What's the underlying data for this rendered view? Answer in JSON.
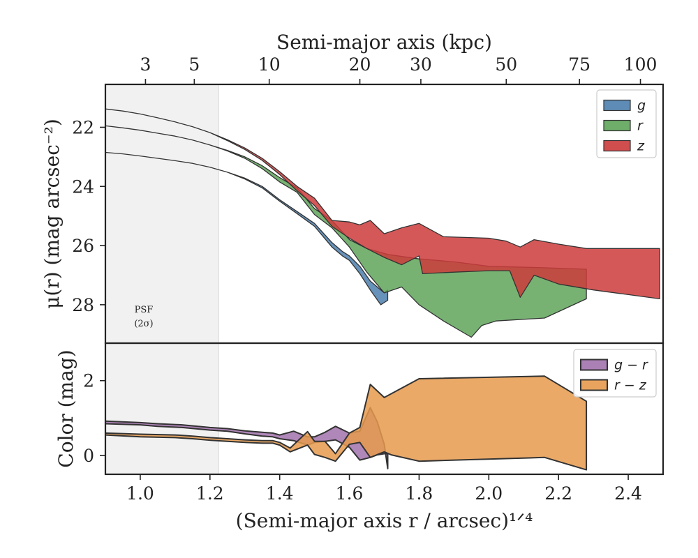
{
  "chart_data": [
    {
      "type": "area",
      "panel": "surface-brightness",
      "ylabel": "μ(r) (mag arcsec⁻²)",
      "top_xlabel": "Semi-major axis (kpc)",
      "top_ticks": [
        {
          "label": "3",
          "x": 1.015
        },
        {
          "label": "5",
          "x": 1.155
        },
        {
          "label": "10",
          "x": 1.37
        },
        {
          "label": "20",
          "x": 1.63
        },
        {
          "label": "30",
          "x": 1.805
        },
        {
          "label": "50",
          "x": 2.05
        },
        {
          "label": "75",
          "x": 2.26
        },
        {
          "label": "100",
          "x": 2.435
        }
      ],
      "xlim": [
        0.9,
        2.5
      ],
      "ylim": [
        29.3,
        20.55
      ],
      "yticks": [
        22,
        24,
        26,
        28
      ],
      "y_inverted": true,
      "psf_region": {
        "x_max": 1.225,
        "label_line1": "PSF",
        "label_line2": "(2σ)"
      },
      "legend": {
        "position": "top-right"
      },
      "series": [
        {
          "name": "g",
          "color": "#4c7fae",
          "upper": [
            [
              0.9,
              22.85
            ],
            [
              0.95,
              22.9
            ],
            [
              1.0,
              22.97
            ],
            [
              1.05,
              23.05
            ],
            [
              1.1,
              23.13
            ],
            [
              1.15,
              23.22
            ],
            [
              1.2,
              23.35
            ],
            [
              1.25,
              23.52
            ],
            [
              1.3,
              23.72
            ],
            [
              1.35,
              24.0
            ],
            [
              1.4,
              24.45
            ],
            [
              1.45,
              24.85
            ],
            [
              1.5,
              25.25
            ],
            [
              1.55,
              25.9
            ],
            [
              1.58,
              26.2
            ],
            [
              1.6,
              26.35
            ],
            [
              1.63,
              26.7
            ],
            [
              1.66,
              27.2
            ],
            [
              1.7,
              27.6
            ],
            [
              1.71,
              27.5
            ]
          ],
          "lower": [
            [
              0.9,
              22.85
            ],
            [
              0.95,
              22.9
            ],
            [
              1.0,
              22.97
            ],
            [
              1.05,
              23.05
            ],
            [
              1.1,
              23.13
            ],
            [
              1.15,
              23.22
            ],
            [
              1.2,
              23.35
            ],
            [
              1.25,
              23.52
            ],
            [
              1.3,
              23.75
            ],
            [
              1.35,
              24.05
            ],
            [
              1.4,
              24.5
            ],
            [
              1.45,
              24.92
            ],
            [
              1.5,
              25.35
            ],
            [
              1.55,
              26.05
            ],
            [
              1.58,
              26.35
            ],
            [
              1.6,
              26.5
            ],
            [
              1.63,
              26.95
            ],
            [
              1.66,
              27.5
            ],
            [
              1.69,
              28.0
            ],
            [
              1.71,
              27.85
            ]
          ]
        },
        {
          "name": "r",
          "color": "#5fa55a",
          "upper": [
            [
              0.9,
              21.95
            ],
            [
              0.95,
              22.02
            ],
            [
              1.0,
              22.1
            ],
            [
              1.05,
              22.2
            ],
            [
              1.1,
              22.3
            ],
            [
              1.15,
              22.43
            ],
            [
              1.2,
              22.6
            ],
            [
              1.25,
              22.78
            ],
            [
              1.3,
              23.0
            ],
            [
              1.35,
              23.3
            ],
            [
              1.4,
              23.7
            ],
            [
              1.45,
              24.05
            ],
            [
              1.5,
              24.75
            ],
            [
              1.55,
              25.15
            ],
            [
              1.6,
              25.8
            ],
            [
              1.65,
              26.1
            ],
            [
              1.71,
              26.3
            ],
            [
              1.8,
              26.45
            ],
            [
              1.9,
              26.55
            ],
            [
              2.0,
              26.7
            ],
            [
              2.16,
              26.75
            ],
            [
              2.28,
              26.8
            ]
          ],
          "lower": [
            [
              0.9,
              21.95
            ],
            [
              0.95,
              22.02
            ],
            [
              1.0,
              22.1
            ],
            [
              1.05,
              22.2
            ],
            [
              1.1,
              22.3
            ],
            [
              1.15,
              22.43
            ],
            [
              1.2,
              22.6
            ],
            [
              1.25,
              22.8
            ],
            [
              1.3,
              23.05
            ],
            [
              1.35,
              23.4
            ],
            [
              1.4,
              23.85
            ],
            [
              1.45,
              24.2
            ],
            [
              1.5,
              24.95
            ],
            [
              1.55,
              25.4
            ],
            [
              1.6,
              26.05
            ],
            [
              1.65,
              26.9
            ],
            [
              1.7,
              27.6
            ],
            [
              1.75,
              27.4
            ],
            [
              1.8,
              28.0
            ],
            [
              1.87,
              28.55
            ],
            [
              1.95,
              29.1
            ],
            [
              1.98,
              28.7
            ],
            [
              2.02,
              28.55
            ],
            [
              2.16,
              28.45
            ],
            [
              2.28,
              27.8
            ]
          ]
        },
        {
          "name": "z",
          "color": "#cc3b3b",
          "upper": [
            [
              0.9,
              21.38
            ],
            [
              0.95,
              21.45
            ],
            [
              1.0,
              21.55
            ],
            [
              1.05,
              21.68
            ],
            [
              1.1,
              21.82
            ],
            [
              1.15,
              21.98
            ],
            [
              1.2,
              22.18
            ],
            [
              1.25,
              22.42
            ],
            [
              1.3,
              22.7
            ],
            [
              1.35,
              23.05
            ],
            [
              1.4,
              23.5
            ],
            [
              1.45,
              24.0
            ],
            [
              1.5,
              24.4
            ],
            [
              1.55,
              25.15
            ],
            [
              1.6,
              25.2
            ],
            [
              1.63,
              25.3
            ],
            [
              1.66,
              25.15
            ],
            [
              1.7,
              25.6
            ],
            [
              1.75,
              25.4
            ],
            [
              1.8,
              25.25
            ],
            [
              1.87,
              25.7
            ],
            [
              2.0,
              25.75
            ],
            [
              2.05,
              25.85
            ],
            [
              2.09,
              26.05
            ],
            [
              2.13,
              25.8
            ],
            [
              2.2,
              25.95
            ],
            [
              2.28,
              26.1
            ],
            [
              2.49,
              26.1
            ]
          ],
          "lower": [
            [
              0.9,
              21.38
            ],
            [
              0.95,
              21.45
            ],
            [
              1.0,
              21.55
            ],
            [
              1.05,
              21.68
            ],
            [
              1.1,
              21.82
            ],
            [
              1.15,
              21.98
            ],
            [
              1.2,
              22.18
            ],
            [
              1.25,
              22.45
            ],
            [
              1.3,
              22.75
            ],
            [
              1.35,
              23.12
            ],
            [
              1.4,
              23.6
            ],
            [
              1.45,
              24.15
            ],
            [
              1.5,
              24.65
            ],
            [
              1.55,
              25.35
            ],
            [
              1.6,
              25.75
            ],
            [
              1.65,
              26.1
            ],
            [
              1.7,
              26.4
            ],
            [
              1.75,
              26.65
            ],
            [
              1.8,
              26.35
            ],
            [
              1.81,
              26.95
            ],
            [
              1.9,
              26.9
            ],
            [
              2.0,
              26.85
            ],
            [
              2.06,
              26.85
            ],
            [
              2.09,
              27.75
            ],
            [
              2.13,
              27.0
            ],
            [
              2.2,
              27.3
            ],
            [
              2.3,
              27.5
            ],
            [
              2.49,
              27.8
            ]
          ]
        }
      ]
    },
    {
      "type": "area",
      "panel": "color",
      "xlabel": "(Semi-major axis r / arcsec)¹ᐟ⁴",
      "ylabel": "Color (mag)",
      "xlim": [
        0.9,
        2.5
      ],
      "ylim": [
        -0.5,
        3.0
      ],
      "yticks": [
        0,
        2
      ],
      "xticks": [
        1.0,
        1.2,
        1.4,
        1.6,
        1.8,
        2.0,
        2.2,
        2.4
      ],
      "xtick_labels": [
        "1.0",
        "1.2",
        "1.4",
        "1.6",
        "1.8",
        "2.0",
        "2.2",
        "2.4"
      ],
      "legend": {
        "position": "top-right"
      },
      "series": [
        {
          "name": "g − r",
          "color": "#a272ad",
          "upper": [
            [
              0.9,
              0.92
            ],
            [
              1.0,
              0.88
            ],
            [
              1.05,
              0.85
            ],
            [
              1.12,
              0.82
            ],
            [
              1.2,
              0.75
            ],
            [
              1.25,
              0.72
            ],
            [
              1.3,
              0.66
            ],
            [
              1.35,
              0.62
            ],
            [
              1.38,
              0.6
            ],
            [
              1.4,
              0.55
            ],
            [
              1.44,
              0.65
            ],
            [
              1.48,
              0.5
            ],
            [
              1.5,
              0.5
            ],
            [
              1.53,
              0.62
            ],
            [
              1.56,
              0.78
            ],
            [
              1.6,
              0.6
            ],
            [
              1.63,
              0.65
            ],
            [
              1.66,
              1.28
            ],
            [
              1.68,
              0.9
            ],
            [
              1.7,
              0.3
            ],
            [
              1.71,
              -0.35
            ]
          ],
          "lower": [
            [
              0.9,
              0.85
            ],
            [
              1.0,
              0.82
            ],
            [
              1.05,
              0.78
            ],
            [
              1.12,
              0.75
            ],
            [
              1.2,
              0.68
            ],
            [
              1.25,
              0.65
            ],
            [
              1.3,
              0.58
            ],
            [
              1.35,
              0.52
            ],
            [
              1.38,
              0.5
            ],
            [
              1.4,
              0.45
            ],
            [
              1.44,
              0.4
            ],
            [
              1.48,
              0.28
            ],
            [
              1.5,
              0.35
            ],
            [
              1.53,
              0.38
            ],
            [
              1.56,
              0.42
            ],
            [
              1.6,
              0.22
            ],
            [
              1.63,
              -0.12
            ],
            [
              1.66,
              -0.05
            ],
            [
              1.68,
              0.02
            ],
            [
              1.7,
              0.05
            ],
            [
              1.71,
              0.05
            ]
          ]
        },
        {
          "name": "r − z",
          "color": "#e69a4c",
          "upper": [
            [
              0.9,
              0.6
            ],
            [
              1.0,
              0.57
            ],
            [
              1.1,
              0.55
            ],
            [
              1.15,
              0.52
            ],
            [
              1.2,
              0.48
            ],
            [
              1.25,
              0.45
            ],
            [
              1.3,
              0.42
            ],
            [
              1.35,
              0.4
            ],
            [
              1.38,
              0.4
            ],
            [
              1.4,
              0.35
            ],
            [
              1.43,
              0.2
            ],
            [
              1.48,
              0.64
            ],
            [
              1.5,
              0.38
            ],
            [
              1.53,
              0.38
            ],
            [
              1.56,
              0.05
            ],
            [
              1.6,
              0.6
            ],
            [
              1.63,
              0.75
            ],
            [
              1.66,
              1.9
            ],
            [
              1.7,
              1.55
            ],
            [
              1.72,
              1.65
            ],
            [
              1.8,
              2.05
            ],
            [
              2.16,
              2.12
            ],
            [
              2.28,
              1.45
            ]
          ],
          "lower": [
            [
              0.9,
              0.55
            ],
            [
              1.0,
              0.5
            ],
            [
              1.1,
              0.48
            ],
            [
              1.15,
              0.45
            ],
            [
              1.2,
              0.41
            ],
            [
              1.25,
              0.38
            ],
            [
              1.3,
              0.35
            ],
            [
              1.35,
              0.33
            ],
            [
              1.38,
              0.33
            ],
            [
              1.4,
              0.28
            ],
            [
              1.43,
              0.1
            ],
            [
              1.48,
              0.28
            ],
            [
              1.5,
              0.03
            ],
            [
              1.53,
              -0.05
            ],
            [
              1.56,
              -0.15
            ],
            [
              1.6,
              0.3
            ],
            [
              1.63,
              0.35
            ],
            [
              1.66,
              -0.05
            ],
            [
              1.7,
              0.1
            ],
            [
              1.72,
              0.02
            ],
            [
              1.8,
              -0.15
            ],
            [
              2.16,
              -0.05
            ],
            [
              2.28,
              -0.38
            ]
          ]
        }
      ]
    }
  ]
}
